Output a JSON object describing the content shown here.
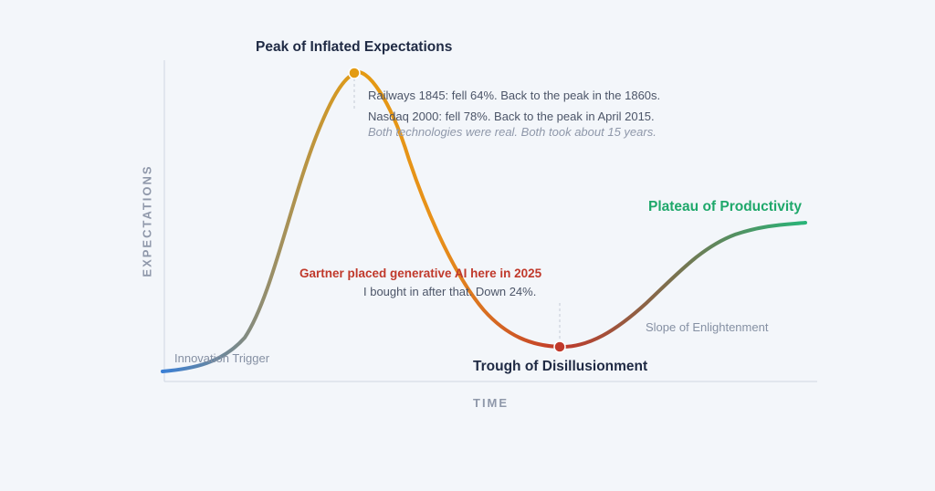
{
  "axes": {
    "y_title": "EXPECTATIONS",
    "x_title": "TIME"
  },
  "phases": {
    "innovation_trigger": "Innovation Trigger",
    "peak": "Peak of Inflated Expectations",
    "trough": "Trough of Disillusionment",
    "slope": "Slope of Enlightenment",
    "plateau": "Plateau of Productivity"
  },
  "peak_notes": {
    "railways": "Railways 1845: fell 64%. Back to the peak in the 1860s.",
    "nasdaq": "Nasdaq 2000: fell 78%. Back to the peak in April 2015.",
    "summary": "Both technologies were real. Both took about 15 years."
  },
  "trough_notes": {
    "gartner": "Gartner placed generative AI here in 2025",
    "personal": "I bought in after that. Down 24%."
  },
  "colors": {
    "background": "#f3f6fa",
    "axis": "#cfd6e2",
    "curve_start": "#3a7fd5",
    "curve_peak": "#e39b12",
    "curve_trough": "#c0392b",
    "curve_end": "#28b478",
    "peak_marker": "#e39b12",
    "trough_marker": "#c0392b",
    "plateau_text": "#1fa86b",
    "gartner_text": "#c0392b",
    "dark_text": "#1f2a44"
  }
}
